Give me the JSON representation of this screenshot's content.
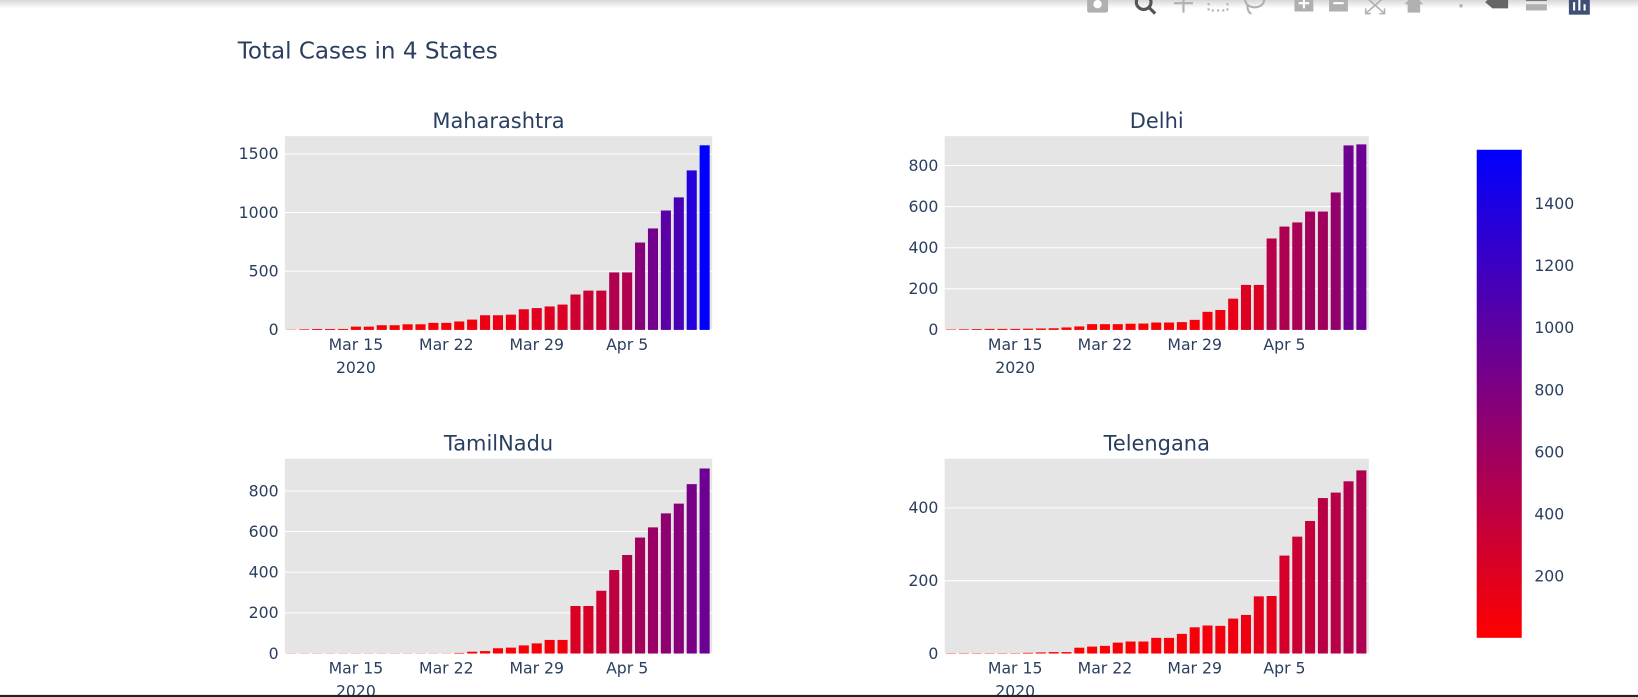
{
  "title": "Total Cases in 4 States",
  "modebar": {
    "icons": [
      "camera-icon",
      "zoom-icon",
      "pan-icon",
      "box-select-icon",
      "lasso-select-icon",
      "zoom-in-icon",
      "zoom-out-icon",
      "autoscale-icon",
      "home-icon",
      "spike-lines-icon",
      "hover-closest-icon",
      "hover-compare-icon",
      "plotly-logo-icon"
    ],
    "color": "#b0b0b0"
  },
  "chart_data": [
    {
      "type": "bar",
      "title": "Maharashtra",
      "x": [
        "2020-03-10",
        "2020-03-11",
        "2020-03-12",
        "2020-03-13",
        "2020-03-14",
        "2020-03-15",
        "2020-03-16",
        "2020-03-17",
        "2020-03-18",
        "2020-03-19",
        "2020-03-20",
        "2020-03-21",
        "2020-03-22",
        "2020-03-23",
        "2020-03-24",
        "2020-03-25",
        "2020-03-26",
        "2020-03-27",
        "2020-03-28",
        "2020-03-29",
        "2020-03-30",
        "2020-03-31",
        "2020-04-01",
        "2020-04-02",
        "2020-04-03",
        "2020-04-04",
        "2020-04-05",
        "2020-04-06",
        "2020-04-07",
        "2020-04-08",
        "2020-04-09",
        "2020-04-10",
        "2020-04-11"
      ],
      "values": [
        2,
        5,
        8,
        8,
        8,
        28,
        28,
        40,
        40,
        48,
        48,
        60,
        60,
        72,
        88,
        125,
        125,
        130,
        176,
        186,
        200,
        216,
        302,
        335,
        335,
        490,
        490,
        745,
        865,
        1018,
        1130,
        1360,
        1574
      ],
      "ylim": [
        0,
        1652
      ],
      "yticks": [
        "0",
        "500",
        "1000",
        "1500"
      ],
      "ytick_values": [
        0,
        500,
        1000,
        1500
      ],
      "xticks": [
        "Mar 15",
        "Mar 22",
        "Mar 29",
        "Apr 5"
      ],
      "xtick_dates": [
        "2020-03-15",
        "2020-03-22",
        "2020-03-29",
        "2020-04-05"
      ],
      "year_label": "2020",
      "grid": true
    },
    {
      "type": "bar",
      "title": "Delhi",
      "x": [
        "2020-03-10",
        "2020-03-11",
        "2020-03-12",
        "2020-03-13",
        "2020-03-14",
        "2020-03-15",
        "2020-03-16",
        "2020-03-17",
        "2020-03-18",
        "2020-03-19",
        "2020-03-20",
        "2020-03-21",
        "2020-03-22",
        "2020-03-23",
        "2020-03-24",
        "2020-03-25",
        "2020-03-26",
        "2020-03-27",
        "2020-03-28",
        "2020-03-29",
        "2020-03-30",
        "2020-03-31",
        "2020-04-01",
        "2020-04-02",
        "2020-04-03",
        "2020-04-04",
        "2020-04-05",
        "2020-04-06",
        "2020-04-07",
        "2020-04-08",
        "2020-04-09",
        "2020-04-10",
        "2020-04-11"
      ],
      "values": [
        2,
        3,
        4,
        5,
        5,
        5,
        6,
        7,
        8,
        12,
        17,
        28,
        28,
        28,
        30,
        31,
        36,
        36,
        38,
        49,
        88,
        97,
        152,
        219,
        219,
        445,
        503,
        523,
        576,
        576,
        669,
        898,
        903
      ],
      "ylim": [
        0,
        943
      ],
      "yticks": [
        "0",
        "200",
        "400",
        "600",
        "800"
      ],
      "ytick_values": [
        0,
        200,
        400,
        600,
        800
      ],
      "xticks": [
        "Mar 15",
        "Mar 22",
        "Mar 29",
        "Apr 5"
      ],
      "xtick_dates": [
        "2020-03-15",
        "2020-03-22",
        "2020-03-29",
        "2020-04-05"
      ],
      "year_label": "2020",
      "grid": true
    },
    {
      "type": "bar",
      "title": "TamilNadu",
      "x": [
        "2020-03-10",
        "2020-03-11",
        "2020-03-12",
        "2020-03-13",
        "2020-03-14",
        "2020-03-15",
        "2020-03-16",
        "2020-03-17",
        "2020-03-18",
        "2020-03-19",
        "2020-03-20",
        "2020-03-21",
        "2020-03-22",
        "2020-03-23",
        "2020-03-24",
        "2020-03-25",
        "2020-03-26",
        "2020-03-27",
        "2020-03-28",
        "2020-03-29",
        "2020-03-30",
        "2020-03-31",
        "2020-04-01",
        "2020-04-02",
        "2020-04-03",
        "2020-04-04",
        "2020-04-05",
        "2020-04-06",
        "2020-04-07",
        "2020-04-08",
        "2020-04-09",
        "2020-04-10",
        "2020-04-11"
      ],
      "values": [
        1,
        1,
        1,
        1,
        1,
        1,
        1,
        1,
        1,
        1,
        1,
        1,
        1,
        3,
        9,
        12,
        26,
        29,
        40,
        50,
        67,
        67,
        234,
        234,
        309,
        411,
        485,
        571,
        621,
        690,
        738,
        834,
        911
      ],
      "ylim": [
        0,
        959
      ],
      "yticks": [
        "0",
        "200",
        "400",
        "600",
        "800"
      ],
      "ytick_values": [
        0,
        200,
        400,
        600,
        800
      ],
      "xticks": [
        "Mar 15",
        "Mar 22",
        "Mar 29",
        "Apr 5"
      ],
      "xtick_dates": [
        "2020-03-15",
        "2020-03-22",
        "2020-03-29",
        "2020-04-05"
      ],
      "year_label": "2020",
      "grid": true
    },
    {
      "type": "bar",
      "title": "Telengana",
      "x": [
        "2020-03-10",
        "2020-03-11",
        "2020-03-12",
        "2020-03-13",
        "2020-03-14",
        "2020-03-15",
        "2020-03-16",
        "2020-03-17",
        "2020-03-18",
        "2020-03-19",
        "2020-03-20",
        "2020-03-21",
        "2020-03-22",
        "2020-03-23",
        "2020-03-24",
        "2020-03-25",
        "2020-03-26",
        "2020-03-27",
        "2020-03-28",
        "2020-03-29",
        "2020-03-30",
        "2020-03-31",
        "2020-04-01",
        "2020-04-02",
        "2020-04-03",
        "2020-04-04",
        "2020-04-05",
        "2020-04-06",
        "2020-04-07",
        "2020-04-08",
        "2020-04-09",
        "2020-04-10",
        "2020-04-11"
      ],
      "values": [
        1,
        1,
        1,
        1,
        1,
        1,
        2,
        3,
        4,
        4,
        16,
        19,
        21,
        30,
        33,
        33,
        43,
        43,
        54,
        72,
        77,
        76,
        96,
        106,
        157,
        158,
        269,
        321,
        364,
        427,
        442,
        473,
        503
      ],
      "ylim": [
        0,
        535
      ],
      "yticks": [
        "0",
        "200",
        "400"
      ],
      "ytick_values": [
        0,
        200,
        400
      ],
      "xticks": [
        "Mar 15",
        "Mar 22",
        "Mar 29",
        "Apr 5"
      ],
      "xtick_dates": [
        "2020-03-15",
        "2020-03-22",
        "2020-03-29",
        "2020-04-05"
      ],
      "year_label": "2020",
      "grid": true
    }
  ],
  "colorbar": {
    "colorscale": [
      "#ff0000",
      "#0000ff"
    ],
    "range": [
      2,
      1574
    ],
    "ticks": [
      "200",
      "400",
      "600",
      "800",
      "1000",
      "1200",
      "1400"
    ],
    "tick_values": [
      200,
      400,
      600,
      800,
      1000,
      1200,
      1400
    ]
  },
  "colors": {
    "plot_bg": "#e5e5e5",
    "grid": "#ffffff",
    "text": "#2a3f5f"
  },
  "x_range": [
    "2020-03-09T12:00",
    "2020-04-11T14:00"
  ]
}
